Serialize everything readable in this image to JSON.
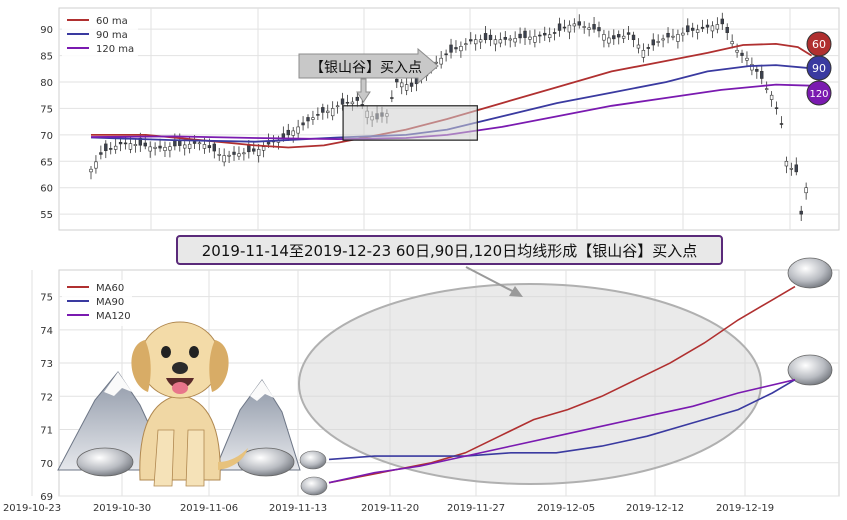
{
  "chart_data": [
    {
      "type": "candlestick",
      "ylim": [
        52,
        94
      ],
      "yticks": [
        55,
        60,
        65,
        70,
        75,
        80,
        85,
        90
      ],
      "grid": true,
      "legend_position": "top-left",
      "legend": [
        "60 ma",
        "90 ma",
        "120 ma"
      ],
      "colors": {
        "ma60": "#b03030",
        "ma90": "#3a3aa0",
        "ma120": "#7a1ab0",
        "up": "#ffffff",
        "down": "#3c4250"
      },
      "ma_badges": [
        "60",
        "90",
        "120"
      ],
      "candle_count": 146,
      "ma60": [
        [
          0,
          70
        ],
        [
          20,
          70
        ],
        [
          40,
          69
        ],
        [
          60,
          68
        ],
        [
          72,
          67.6
        ],
        [
          85,
          68
        ],
        [
          100,
          69.5
        ],
        [
          115,
          71
        ],
        [
          130,
          73
        ],
        [
          150,
          76
        ],
        [
          170,
          79
        ],
        [
          190,
          82
        ],
        [
          210,
          84
        ],
        [
          225,
          85.5
        ],
        [
          238,
          87
        ],
        [
          250,
          87.2
        ],
        [
          258,
          86.6
        ],
        [
          263,
          85
        ]
      ],
      "ma90": [
        [
          0,
          69.5
        ],
        [
          30,
          69
        ],
        [
          60,
          68.7
        ],
        [
          90,
          69.5
        ],
        [
          115,
          70
        ],
        [
          130,
          71
        ],
        [
          150,
          73.5
        ],
        [
          170,
          76
        ],
        [
          190,
          78
        ],
        [
          210,
          80
        ],
        [
          225,
          82
        ],
        [
          240,
          83
        ],
        [
          250,
          83.2
        ],
        [
          263,
          82.6
        ]
      ],
      "ma120": [
        [
          0,
          69.6
        ],
        [
          30,
          69.7
        ],
        [
          60,
          69.4
        ],
        [
          90,
          69.2
        ],
        [
          115,
          69.4
        ],
        [
          130,
          70
        ],
        [
          150,
          71.5
        ],
        [
          170,
          73.5
        ],
        [
          190,
          75.5
        ],
        [
          210,
          77
        ],
        [
          230,
          78.5
        ],
        [
          250,
          79.5
        ],
        [
          263,
          79.3
        ]
      ],
      "annotation": "【银山谷】买入点",
      "highlight_box": {
        "x": [
          92,
          141
        ],
        "y": [
          69,
          75.5
        ]
      }
    },
    {
      "type": "line",
      "title": "2019-11-14至2019-12-23 60日,90日,120日均线形成【银山谷】买入点",
      "ylim": [
        69,
        75.8
      ],
      "yticks": [
        69,
        70,
        71,
        72,
        73,
        74,
        75
      ],
      "xticks": [
        "2019-10-23",
        "2019-10-30",
        "2019-11-06",
        "2019-11-13",
        "2019-11-20",
        "2019-11-27",
        "2019-12-05",
        "2019-12-12",
        "2019-12-19"
      ],
      "legend_position": "top-left",
      "series": [
        {
          "name": "MA60",
          "color": "#b03030",
          "values": [
            [
              0,
              69.4
            ],
            [
              3,
              69.6
            ],
            [
              6,
              69.8
            ],
            [
              9,
              70.0
            ],
            [
              12,
              70.3
            ],
            [
              15,
              70.8
            ],
            [
              18,
              71.3
            ],
            [
              21,
              71.6
            ],
            [
              24,
              72.0
            ],
            [
              27,
              72.5
            ],
            [
              30,
              73.0
            ],
            [
              33,
              73.6
            ],
            [
              36,
              74.3
            ],
            [
              39,
              74.9
            ],
            [
              41,
              75.3
            ]
          ]
        },
        {
          "name": "MA90",
          "color": "#3a3aa0",
          "values": [
            [
              0,
              70.1
            ],
            [
              4,
              70.2
            ],
            [
              8,
              70.2
            ],
            [
              12,
              70.2
            ],
            [
              16,
              70.3
            ],
            [
              20,
              70.3
            ],
            [
              24,
              70.5
            ],
            [
              28,
              70.8
            ],
            [
              32,
              71.2
            ],
            [
              36,
              71.6
            ],
            [
              39,
              72.1
            ],
            [
              41,
              72.5
            ]
          ]
        },
        {
          "name": "MA120",
          "color": "#7a1ab0",
          "values": [
            [
              0,
              69.4
            ],
            [
              4,
              69.7
            ],
            [
              8,
              69.9
            ],
            [
              12,
              70.2
            ],
            [
              16,
              70.5
            ],
            [
              20,
              70.8
            ],
            [
              24,
              71.1
            ],
            [
              28,
              71.4
            ],
            [
              32,
              71.7
            ],
            [
              36,
              72.1
            ],
            [
              41,
              72.5
            ]
          ]
        }
      ]
    }
  ]
}
